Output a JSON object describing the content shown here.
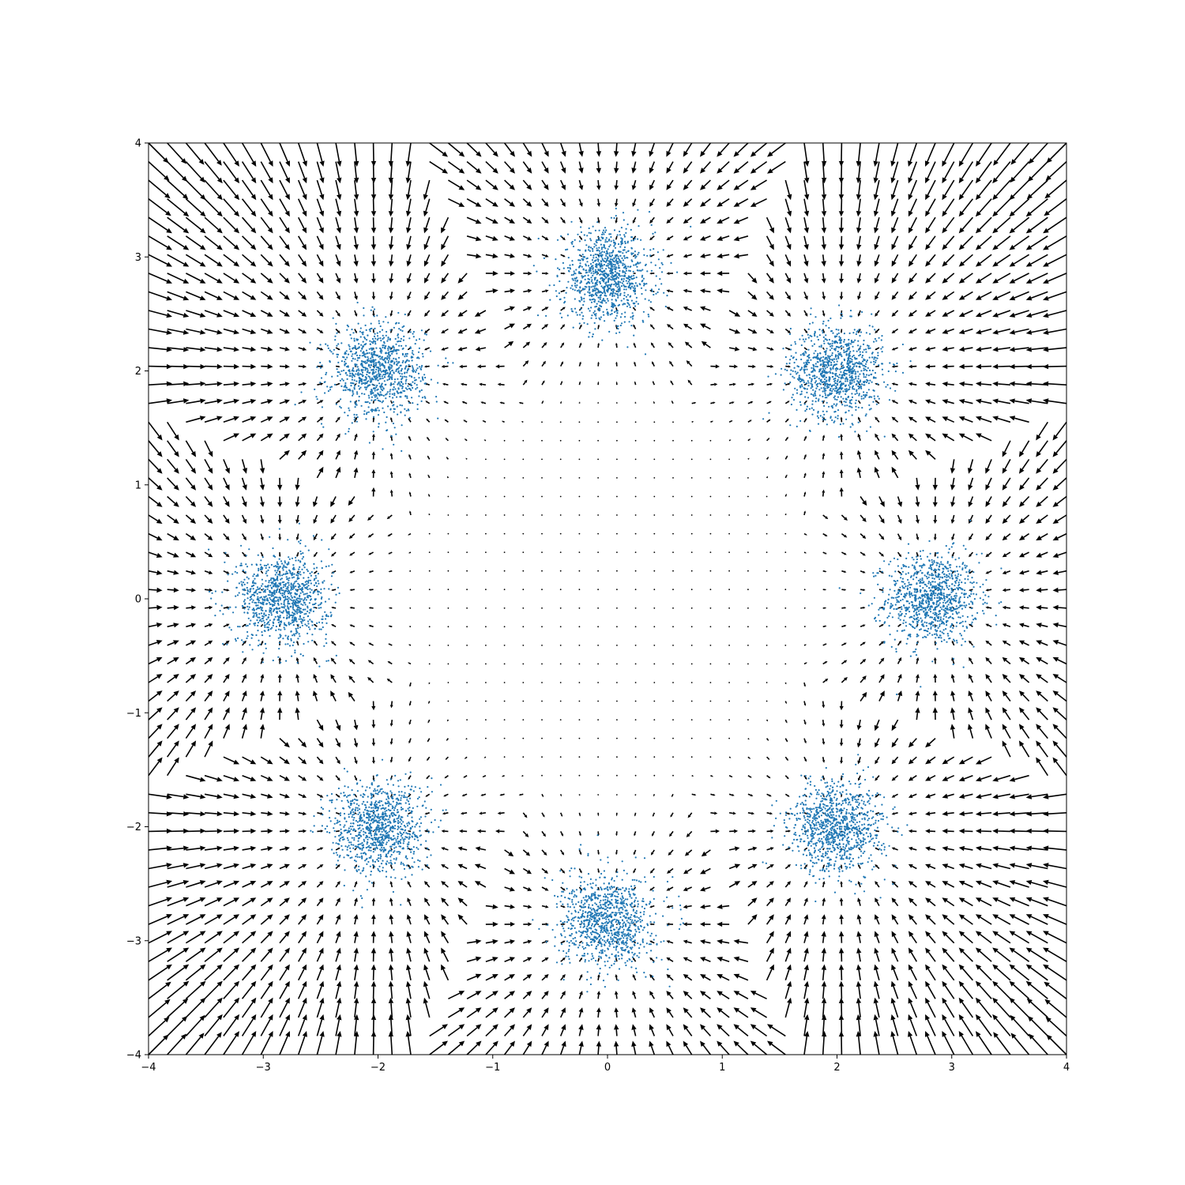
{
  "chart_data": {
    "type": "quiver+scatter",
    "title": "",
    "xlabel": "",
    "ylabel": "",
    "xlim": [
      -4,
      4
    ],
    "ylim": [
      -4,
      4
    ],
    "xticks": [
      "−4",
      "−3",
      "−2",
      "−1",
      "0",
      "1",
      "2",
      "3",
      "4"
    ],
    "yticks": [
      "−4",
      "−3",
      "−2",
      "−1",
      "0",
      "1",
      "2",
      "3",
      "4"
    ],
    "grid": false,
    "legend": "none",
    "scatter": {
      "name": "",
      "color": "#1f77b4",
      "approx_total_points": 8000,
      "clusters": [
        {
          "center": [
            2.83,
            0.0
          ],
          "std": 0.2,
          "approx_points": 1000
        },
        {
          "center": [
            2.0,
            2.0
          ],
          "std": 0.2,
          "approx_points": 1000
        },
        {
          "center": [
            0.0,
            2.83
          ],
          "std": 0.2,
          "approx_points": 1000
        },
        {
          "center": [
            -2.0,
            2.0
          ],
          "std": 0.2,
          "approx_points": 1000
        },
        {
          "center": [
            -2.83,
            0.0
          ],
          "std": 0.2,
          "approx_points": 1000
        },
        {
          "center": [
            -2.0,
            -2.0
          ],
          "std": 0.2,
          "approx_points": 1000
        },
        {
          "center": [
            0.0,
            -2.83
          ],
          "std": 0.2,
          "approx_points": 1000
        },
        {
          "center": [
            2.0,
            -2.0
          ],
          "std": 0.2,
          "approx_points": 1000
        }
      ]
    },
    "quiver": {
      "name": "",
      "color": "#000000",
      "grid_points_per_axis": 50,
      "range": [
        -4,
        4
      ],
      "field": "vector field pointing from outer region toward the ring of cluster centers; near zero inside radius ~2.2, magnitude grows with distance outside"
    }
  }
}
